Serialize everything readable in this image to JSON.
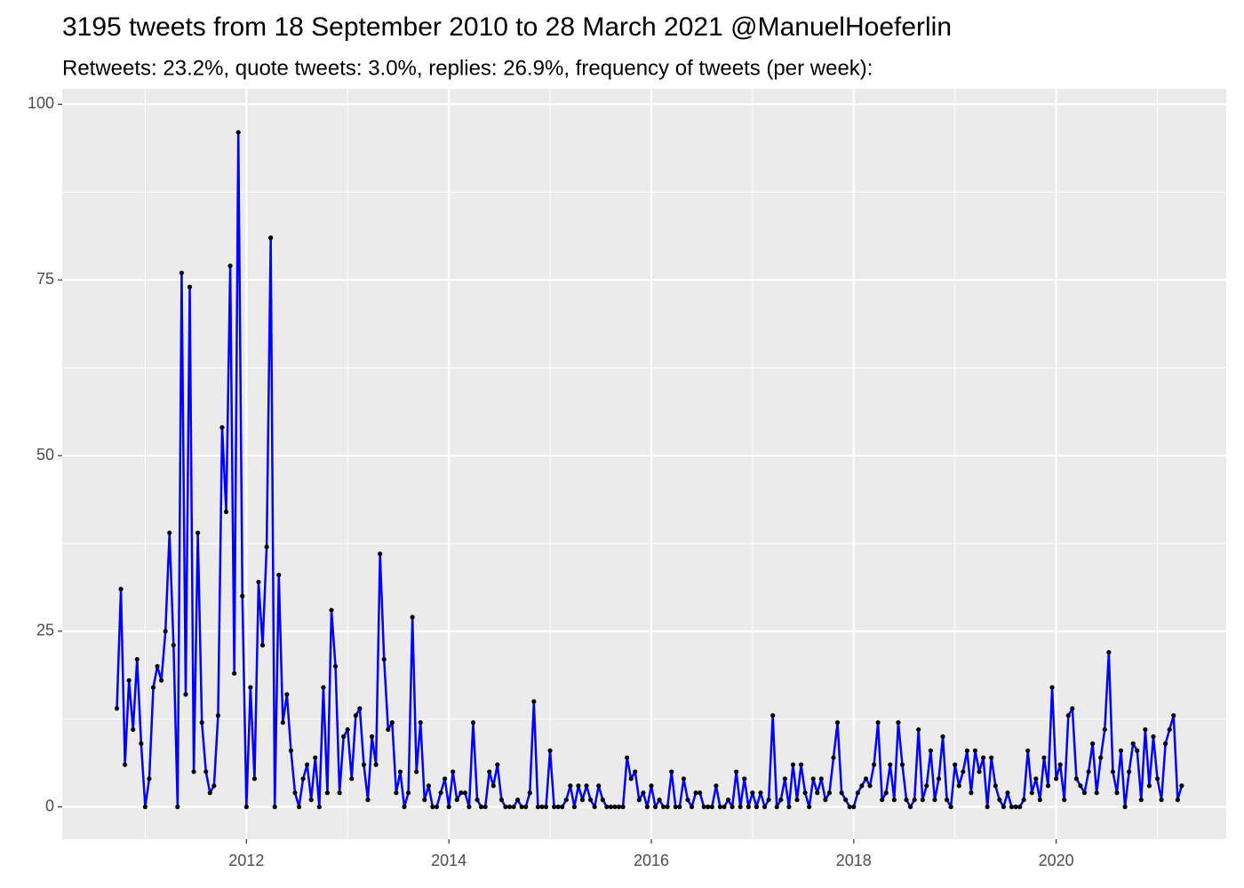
{
  "chart_data": {
    "type": "line",
    "title": "3195 tweets from 18 September 2010 to 28 March 2021 @ManuelHoeferlin",
    "subtitle": "Retweets: 23.2%, quote tweets: 3.0%, replies: 26.9%, frequency of tweets (per week):",
    "x": [
      2010.72,
      2010.76,
      2010.8,
      2010.84,
      2010.88,
      2010.92,
      2010.96,
      2011.0,
      2011.04,
      2011.08,
      2011.12,
      2011.16,
      2011.2,
      2011.24,
      2011.28,
      2011.32,
      2011.36,
      2011.4,
      2011.44,
      2011.48,
      2011.52,
      2011.56,
      2011.6,
      2011.64,
      2011.68,
      2011.72,
      2011.76,
      2011.8,
      2011.84,
      2011.88,
      2011.92,
      2011.96,
      2012.0,
      2012.04,
      2012.08,
      2012.12,
      2012.16,
      2012.2,
      2012.24,
      2012.28,
      2012.32,
      2012.36,
      2012.4,
      2012.44,
      2012.48,
      2012.52,
      2012.56,
      2012.6,
      2012.64,
      2012.68,
      2012.72,
      2012.76,
      2012.8,
      2012.84,
      2012.88,
      2012.92,
      2012.96,
      2013.0,
      2013.04,
      2013.08,
      2013.12,
      2013.16,
      2013.2,
      2013.24,
      2013.28,
      2013.32,
      2013.36,
      2013.4,
      2013.44,
      2013.48,
      2013.52,
      2013.56,
      2013.6,
      2013.64,
      2013.68,
      2013.72,
      2013.76,
      2013.8,
      2013.84,
      2013.88,
      2013.92,
      2013.96,
      2014.0,
      2014.04,
      2014.08,
      2014.12,
      2014.16,
      2014.2,
      2014.24,
      2014.28,
      2014.32,
      2014.36,
      2014.4,
      2014.44,
      2014.48,
      2014.52,
      2014.56,
      2014.6,
      2014.64,
      2014.68,
      2014.72,
      2014.76,
      2014.8,
      2014.84,
      2014.88,
      2014.92,
      2014.96,
      2015.0,
      2015.04,
      2015.08,
      2015.12,
      2015.16,
      2015.2,
      2015.24,
      2015.28,
      2015.32,
      2015.36,
      2015.4,
      2015.44,
      2015.48,
      2015.52,
      2015.56,
      2015.6,
      2015.64,
      2015.68,
      2015.72,
      2015.76,
      2015.8,
      2015.84,
      2015.88,
      2015.92,
      2015.96,
      2016.0,
      2016.04,
      2016.08,
      2016.12,
      2016.16,
      2016.2,
      2016.24,
      2016.28,
      2016.32,
      2016.36,
      2016.4,
      2016.44,
      2016.48,
      2016.52,
      2016.56,
      2016.6,
      2016.64,
      2016.68,
      2016.72,
      2016.76,
      2016.8,
      2016.84,
      2016.88,
      2016.92,
      2016.96,
      2017.0,
      2017.04,
      2017.08,
      2017.12,
      2017.16,
      2017.2,
      2017.24,
      2017.28,
      2017.32,
      2017.36,
      2017.4,
      2017.44,
      2017.48,
      2017.52,
      2017.56,
      2017.6,
      2017.64,
      2017.68,
      2017.72,
      2017.76,
      2017.8,
      2017.84,
      2017.88,
      2017.92,
      2017.96,
      2018.0,
      2018.04,
      2018.08,
      2018.12,
      2018.16,
      2018.2,
      2018.24,
      2018.28,
      2018.32,
      2018.36,
      2018.4,
      2018.44,
      2018.48,
      2018.52,
      2018.56,
      2018.6,
      2018.64,
      2018.68,
      2018.72,
      2018.76,
      2018.8,
      2018.84,
      2018.88,
      2018.92,
      2018.96,
      2019.0,
      2019.04,
      2019.08,
      2019.12,
      2019.16,
      2019.2,
      2019.24,
      2019.28,
      2019.32,
      2019.36,
      2019.4,
      2019.44,
      2019.48,
      2019.52,
      2019.56,
      2019.6,
      2019.64,
      2019.68,
      2019.72,
      2019.76,
      2019.8,
      2019.84,
      2019.88,
      2019.92,
      2019.96,
      2020.0,
      2020.04,
      2020.08,
      2020.12,
      2020.16,
      2020.2,
      2020.24,
      2020.28,
      2020.32,
      2020.36,
      2020.4,
      2020.44,
      2020.48,
      2020.52,
      2020.56,
      2020.6,
      2020.64,
      2020.68,
      2020.72,
      2020.76,
      2020.8,
      2020.84,
      2020.88,
      2020.92,
      2020.96,
      2021.0,
      2021.04,
      2021.08,
      2021.12,
      2021.16,
      2021.2,
      2021.24
    ],
    "series": [
      {
        "color": "#0000ff",
        "point_color": "#000000",
        "values": [
          14,
          31,
          6,
          18,
          11,
          21,
          9,
          0,
          4,
          17,
          20,
          18,
          25,
          39,
          23,
          0,
          76,
          16,
          74,
          5,
          39,
          12,
          5,
          2,
          3,
          13,
          54,
          42,
          77,
          19,
          96,
          30,
          0,
          17,
          4,
          32,
          23,
          37,
          81,
          0,
          33,
          12,
          16,
          8,
          2,
          0,
          4,
          6,
          1,
          7,
          0,
          17,
          2,
          28,
          20,
          2,
          10,
          11,
          4,
          13,
          14,
          6,
          1,
          10,
          6,
          36,
          21,
          11,
          12,
          2,
          5,
          0,
          2,
          27,
          5,
          12,
          1,
          3,
          0,
          0,
          2,
          4,
          0,
          5,
          1,
          2,
          2,
          0,
          12,
          1,
          0,
          0,
          5,
          3,
          6,
          1,
          0,
          0,
          0,
          1,
          0,
          0,
          2,
          15,
          0,
          0,
          0,
          8,
          0,
          0,
          0,
          1,
          3,
          0,
          3,
          1,
          3,
          1,
          0,
          3,
          1,
          0,
          0,
          0,
          0,
          0,
          7,
          4,
          5,
          1,
          2,
          0,
          3,
          0,
          1,
          0,
          0,
          5,
          0,
          0,
          4,
          1,
          0,
          2,
          2,
          0,
          0,
          0,
          3,
          0,
          0,
          1,
          0,
          5,
          0,
          4,
          0,
          2,
          0,
          2,
          0,
          1,
          13,
          0,
          1,
          4,
          0,
          6,
          1,
          6,
          2,
          0,
          4,
          2,
          4,
          1,
          2,
          7,
          12,
          2,
          1,
          0,
          0,
          2,
          3,
          4,
          3,
          6,
          12,
          1,
          2,
          6,
          1,
          12,
          6,
          1,
          0,
          1,
          11,
          1,
          3,
          8,
          1,
          4,
          10,
          1,
          0,
          6,
          3,
          5,
          8,
          2,
          8,
          5,
          7,
          0,
          7,
          3,
          1,
          0,
          2,
          0,
          0,
          0,
          1,
          8,
          2,
          4,
          1,
          7,
          3,
          17,
          4,
          6,
          1,
          13,
          14,
          4,
          3,
          2,
          5,
          9,
          2,
          7,
          11,
          22,
          5,
          2,
          8,
          0,
          5,
          9,
          8,
          1,
          11,
          3,
          10,
          4,
          1,
          9,
          11,
          13,
          1,
          3
        ]
      }
    ],
    "xlim": [
      2010.18,
      2021.68
    ],
    "ylim": [
      -4.6,
      102.2
    ],
    "xticks": [
      2012,
      2014,
      2016,
      2018,
      2020
    ],
    "yticks": [
      0,
      25,
      50,
      75,
      100
    ],
    "grid": true
  }
}
